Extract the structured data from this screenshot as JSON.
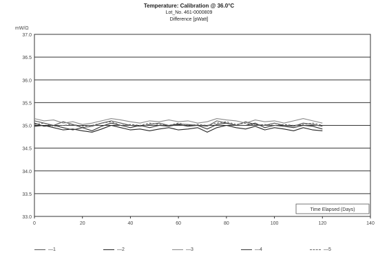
{
  "chart_data": {
    "type": "line",
    "title": "Temperature: Calibration @ 36.0°C",
    "subtitle": "Lot_No. 461-0000809",
    "subtitle2": "Difference [pWatt]",
    "ylabel": "mW/Ω",
    "xlabel": "Time Elapsed (Days)",
    "ylim": [
      33.0,
      37.0
    ],
    "xlim": [
      0,
      140
    ],
    "yticks": [
      "33.0",
      "33.5",
      "34.0",
      "34.5",
      "35.0",
      "35.5",
      "36.0",
      "36.5",
      "37.0"
    ],
    "xticks": [
      "0",
      "20",
      "40",
      "60",
      "80",
      "100",
      "120",
      "140"
    ],
    "grid": true,
    "legend_position": "bottom",
    "series": [
      {
        "name": "—1",
        "color": "#555555",
        "dash": "",
        "x": [
          0,
          4,
          8,
          12,
          16,
          20,
          24,
          28,
          32,
          36,
          40,
          44,
          48,
          52,
          56,
          60,
          64,
          68,
          72,
          76,
          80,
          84,
          88,
          92,
          96,
          100,
          104,
          108,
          112,
          116,
          120
        ],
        "y": [
          35.1,
          35.05,
          35.0,
          35.08,
          35.02,
          34.95,
          34.98,
          35.05,
          35.1,
          35.05,
          35.0,
          34.98,
          35.02,
          35.05,
          35.0,
          35.03,
          35.02,
          35.0,
          34.98,
          35.1,
          35.05,
          35.0,
          35.08,
          35.02,
          35.0,
          35.05,
          35.0,
          34.98,
          35.05,
          35.02,
          34.98
        ]
      },
      {
        "name": "—2",
        "color": "#222222",
        "dash": "",
        "x": [
          0,
          4,
          8,
          12,
          16,
          20,
          24,
          28,
          32,
          36,
          40,
          44,
          48,
          52,
          56,
          60,
          64,
          68,
          72,
          76,
          80,
          84,
          88,
          92,
          96,
          100,
          104,
          108,
          112,
          116,
          120
        ],
        "y": [
          34.98,
          35.0,
          34.95,
          34.9,
          34.92,
          34.88,
          34.85,
          34.92,
          35.0,
          34.95,
          34.9,
          34.92,
          34.88,
          34.92,
          34.95,
          34.9,
          34.92,
          34.95,
          34.85,
          34.95,
          35.0,
          34.95,
          34.92,
          34.98,
          34.9,
          34.95,
          34.92,
          34.88,
          34.95,
          34.9,
          34.88
        ]
      },
      {
        "name": "—3",
        "color": "#888888",
        "dash": "",
        "x": [
          0,
          4,
          8,
          12,
          16,
          20,
          24,
          28,
          32,
          36,
          40,
          44,
          48,
          52,
          56,
          60,
          64,
          68,
          72,
          76,
          80,
          84,
          88,
          92,
          96,
          100,
          104,
          108,
          112,
          116,
          120
        ],
        "y": [
          35.15,
          35.1,
          35.12,
          35.05,
          35.08,
          35.02,
          35.05,
          35.1,
          35.15,
          35.12,
          35.08,
          35.05,
          35.1,
          35.08,
          35.12,
          35.08,
          35.1,
          35.05,
          35.08,
          35.15,
          35.12,
          35.1,
          35.05,
          35.12,
          35.08,
          35.1,
          35.05,
          35.1,
          35.15,
          35.1,
          35.05
        ]
      },
      {
        "name": "—4",
        "color": "#333333",
        "dash": "",
        "x": [
          0,
          4,
          8,
          12,
          16,
          20,
          24,
          28,
          32,
          36,
          40,
          44,
          48,
          52,
          56,
          60,
          64,
          68,
          72,
          76,
          80,
          84,
          88,
          92,
          96,
          100,
          104,
          108,
          112,
          116,
          120
        ],
        "y": [
          35.05,
          34.98,
          35.0,
          34.95,
          34.9,
          34.95,
          34.88,
          34.98,
          35.05,
          35.0,
          34.95,
          35.0,
          34.95,
          35.0,
          34.98,
          35.02,
          34.98,
          35.0,
          34.92,
          35.02,
          35.05,
          35.0,
          35.0,
          35.05,
          34.95,
          35.0,
          34.98,
          34.95,
          35.0,
          34.98,
          34.92
        ]
      },
      {
        "name": "—5",
        "color": "#666666",
        "dash": "3,2",
        "x": [
          0,
          4,
          8,
          12,
          16,
          20,
          24,
          28,
          32,
          36,
          40,
          44,
          48,
          52,
          56,
          60,
          64,
          68,
          72,
          76,
          80,
          84,
          88,
          92,
          96,
          100,
          104,
          108,
          112,
          116,
          120
        ],
        "y": [
          35.02,
          35.05,
          34.98,
          35.0,
          35.02,
          34.98,
          35.0,
          35.05,
          35.08,
          35.0,
          35.02,
          35.0,
          35.05,
          35.02,
          35.0,
          35.05,
          35.0,
          35.02,
          35.0,
          35.05,
          35.08,
          35.02,
          35.05,
          35.0,
          35.02,
          35.0,
          35.02,
          35.0,
          35.02,
          35.05,
          35.0
        ]
      }
    ]
  }
}
